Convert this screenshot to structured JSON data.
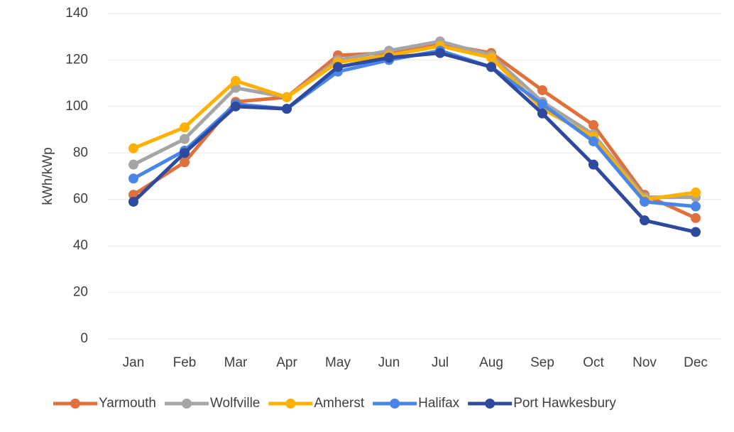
{
  "chart_data": {
    "type": "line",
    "y_label": "kWh/kWp",
    "categories": [
      "Jan",
      "Feb",
      "Mar",
      "Apr",
      "May",
      "Jun",
      "Jul",
      "Aug",
      "Sep",
      "Oct",
      "Nov",
      "Dec"
    ],
    "series": [
      {
        "name": "Yarmouth",
        "color": "#e0703c",
        "values": [
          62,
          76,
          102,
          104,
          122,
          123,
          127,
          123,
          107,
          92,
          62,
          52
        ]
      },
      {
        "name": "Wolfville",
        "color": "#a5a5a5",
        "values": [
          75,
          86,
          108,
          104,
          120,
          124,
          128,
          122,
          102,
          88,
          61,
          61
        ]
      },
      {
        "name": "Amherst",
        "color": "#ffb000",
        "values": [
          82,
          91,
          111,
          104,
          119,
          122,
          126,
          121,
          99,
          87,
          60,
          63
        ]
      },
      {
        "name": "Halifax",
        "color": "#4a86e8",
        "values": [
          69,
          81,
          101,
          99,
          115,
          120,
          124,
          117,
          101,
          85,
          59,
          57
        ]
      },
      {
        "name": "Port Hawkesbury",
        "color": "#2e4a9e",
        "values": [
          59,
          80,
          100,
          99,
          117,
          121,
          123,
          117,
          97,
          75,
          51,
          46
        ]
      }
    ],
    "ylim": [
      0,
      140
    ],
    "yticks": [
      0,
      20,
      40,
      60,
      80,
      100,
      120,
      140
    ],
    "grid": true,
    "legend": "bottom"
  }
}
